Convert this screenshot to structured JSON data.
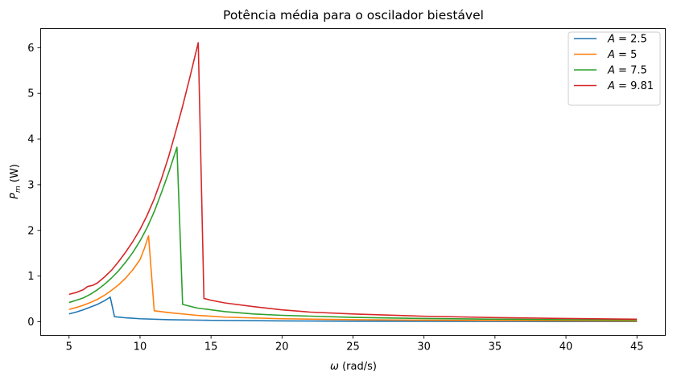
{
  "chart_data": {
    "type": "line",
    "title": "Potência média para o oscilador biestável",
    "xlabel_symbol": "ω",
    "xlabel_unit": " (rad/s)",
    "ylabel_symbol": "P",
    "ylabel_sub": "m",
    "ylabel_unit": " (W)",
    "xlim": [
      3,
      47
    ],
    "ylim": [
      -0.3,
      6.42
    ],
    "xticks": [
      5,
      10,
      15,
      20,
      25,
      30,
      35,
      40,
      45
    ],
    "yticks": [
      0,
      1,
      2,
      3,
      4,
      5,
      6
    ],
    "grid": false,
    "legend_position": "top-right",
    "series": [
      {
        "name_var": "A",
        "name_value": " = 2.5",
        "color": "#1f77b4",
        "points": [
          [
            5,
            0.17
          ],
          [
            5.5,
            0.21
          ],
          [
            6,
            0.26
          ],
          [
            6.5,
            0.32
          ],
          [
            7,
            0.38
          ],
          [
            7.5,
            0.46
          ],
          [
            7.9,
            0.54
          ],
          [
            8.2,
            0.11
          ],
          [
            9,
            0.085
          ],
          [
            10,
            0.065
          ],
          [
            12,
            0.045
          ],
          [
            15,
            0.03
          ],
          [
            20,
            0.017
          ],
          [
            25,
            0.011
          ],
          [
            30,
            0.008
          ],
          [
            35,
            0.006
          ],
          [
            40,
            0.005
          ],
          [
            45,
            0.004
          ]
        ]
      },
      {
        "name_var": "A",
        "name_value": " = 5",
        "color": "#ff7f0e",
        "points": [
          [
            5,
            0.27
          ],
          [
            5.5,
            0.31
          ],
          [
            6,
            0.36
          ],
          [
            6.5,
            0.42
          ],
          [
            7,
            0.49
          ],
          [
            7.5,
            0.58
          ],
          [
            8,
            0.69
          ],
          [
            8.5,
            0.81
          ],
          [
            9,
            0.96
          ],
          [
            9.5,
            1.14
          ],
          [
            10,
            1.36
          ],
          [
            10.3,
            1.6
          ],
          [
            10.6,
            1.88
          ],
          [
            11,
            0.24
          ],
          [
            12,
            0.2
          ],
          [
            14,
            0.14
          ],
          [
            16,
            0.1
          ],
          [
            20,
            0.065
          ],
          [
            25,
            0.045
          ],
          [
            30,
            0.033
          ],
          [
            35,
            0.025
          ],
          [
            40,
            0.02
          ],
          [
            45,
            0.015
          ]
        ]
      },
      {
        "name_var": "A",
        "name_value": " = 7.5",
        "color": "#2ca02c",
        "points": [
          [
            5,
            0.42
          ],
          [
            5.5,
            0.47
          ],
          [
            6,
            0.52
          ],
          [
            6.5,
            0.6
          ],
          [
            7,
            0.7
          ],
          [
            7.5,
            0.82
          ],
          [
            8,
            0.96
          ],
          [
            8.5,
            1.12
          ],
          [
            9,
            1.31
          ],
          [
            9.5,
            1.52
          ],
          [
            10,
            1.77
          ],
          [
            10.5,
            2.06
          ],
          [
            11,
            2.41
          ],
          [
            11.5,
            2.82
          ],
          [
            12,
            3.25
          ],
          [
            12.6,
            3.82
          ],
          [
            13,
            0.38
          ],
          [
            14,
            0.3
          ],
          [
            16,
            0.22
          ],
          [
            18,
            0.17
          ],
          [
            20,
            0.14
          ],
          [
            25,
            0.095
          ],
          [
            30,
            0.07
          ],
          [
            35,
            0.055
          ],
          [
            40,
            0.045
          ],
          [
            45,
            0.037
          ]
        ]
      },
      {
        "name_var": "A",
        "name_value": " = 9.81",
        "color": "#d62728",
        "points": [
          [
            5,
            0.6
          ],
          [
            5.5,
            0.64
          ],
          [
            6,
            0.7
          ],
          [
            6.3,
            0.77
          ],
          [
            6.7,
            0.8
          ],
          [
            7,
            0.85
          ],
          [
            7.5,
            0.98
          ],
          [
            8,
            1.13
          ],
          [
            8.5,
            1.32
          ],
          [
            9,
            1.53
          ],
          [
            9.5,
            1.76
          ],
          [
            10,
            2.02
          ],
          [
            10.5,
            2.33
          ],
          [
            11,
            2.69
          ],
          [
            11.5,
            3.12
          ],
          [
            12,
            3.6
          ],
          [
            12.5,
            4.15
          ],
          [
            13,
            4.72
          ],
          [
            13.5,
            5.34
          ],
          [
            14.1,
            6.11
          ],
          [
            14.5,
            0.51
          ],
          [
            15,
            0.47
          ],
          [
            16,
            0.41
          ],
          [
            18,
            0.33
          ],
          [
            20,
            0.26
          ],
          [
            22,
            0.21
          ],
          [
            25,
            0.17
          ],
          [
            30,
            0.12
          ],
          [
            35,
            0.09
          ],
          [
            40,
            0.07
          ],
          [
            45,
            0.055
          ]
        ]
      }
    ]
  }
}
